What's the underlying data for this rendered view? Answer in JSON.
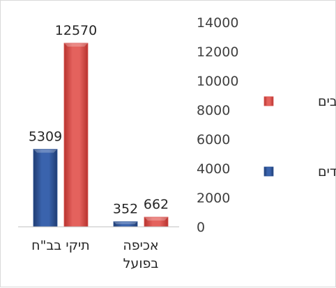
{
  "chart_data": {
    "type": "bar",
    "categories": [
      "תיקי בב\"ח",
      "אכיפה בפועל"
    ],
    "series": [
      {
        "name": "יהודים",
        "values": [
          5309,
          352
        ],
        "color": "#2e5496"
      },
      {
        "name": "ערבים",
        "values": [
          12570,
          662
        ],
        "color": "#d9534f"
      }
    ],
    "ylim": [
      0,
      14000
    ],
    "yticks": [
      0,
      2000,
      4000,
      6000,
      8000,
      10000,
      12000,
      14000
    ],
    "y_axis_side": "right",
    "bar_style": "3d-bevel",
    "grid": false,
    "legend_position": "right",
    "category_label_lines": [
      [
        "תיקי בב\"ח"
      ],
      [
        "אכיפה",
        "בפועל"
      ]
    ]
  }
}
